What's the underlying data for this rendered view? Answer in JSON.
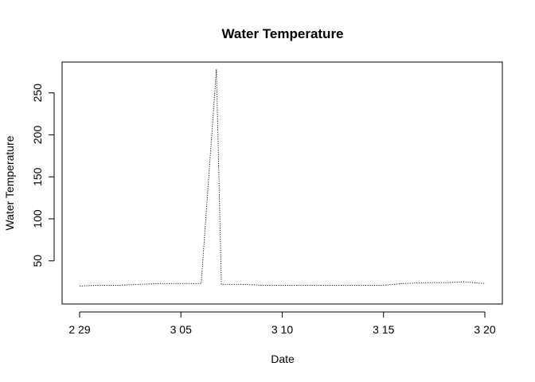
{
  "chart_data": {
    "type": "line",
    "title": "Water Temperature",
    "xlabel": "Date",
    "ylabel": "Water Temperature",
    "x_type": "date",
    "xlim": [
      "2020-02-29",
      "2020-03-20"
    ],
    "ylim": [
      10,
      280
    ],
    "x_ticks": [
      {
        "date": "2020-02-29",
        "label": "2 29"
      },
      {
        "date": "2020-03-05",
        "label": "3 05"
      },
      {
        "date": "2020-03-10",
        "label": "3 10"
      },
      {
        "date": "2020-03-15",
        "label": "3 15"
      },
      {
        "date": "2020-03-20",
        "label": "3 20"
      }
    ],
    "y_ticks": [
      50,
      100,
      150,
      200,
      250
    ],
    "grid": false,
    "legend": "none",
    "line_style": "dotted",
    "line_color": "#000000",
    "series": [
      {
        "x": [
          "2020-02-29",
          "2020-03-01",
          "2020-03-02",
          "2020-03-03",
          "2020-03-04",
          "2020-03-05",
          "2020-03-06",
          "2020-03-06T18:00",
          "2020-03-07",
          "2020-03-08",
          "2020-03-09",
          "2020-03-10",
          "2020-03-11",
          "2020-03-12",
          "2020-03-13",
          "2020-03-14",
          "2020-03-15",
          "2020-03-16",
          "2020-03-17",
          "2020-03-18",
          "2020-03-19",
          "2020-03-20"
        ],
        "values": [
          20,
          21,
          21,
          22,
          23,
          23,
          23,
          278,
          22,
          22,
          21,
          21,
          21,
          21,
          21,
          21,
          21,
          23,
          24,
          24,
          25,
          23
        ]
      }
    ]
  }
}
